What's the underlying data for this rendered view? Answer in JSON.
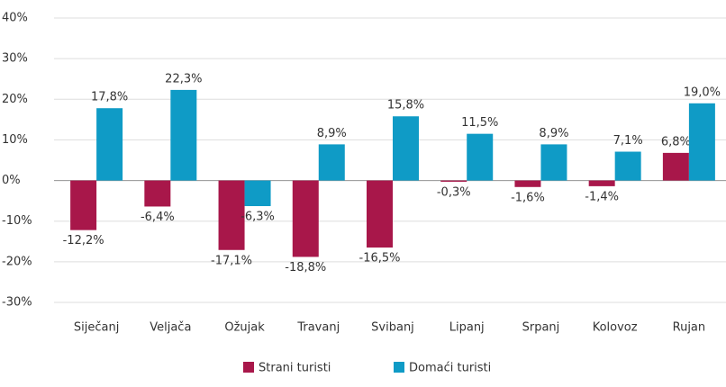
{
  "chart_data": {
    "type": "bar",
    "categories": [
      "Siječanj",
      "Veljača",
      "Ožujak",
      "Travanj",
      "Svibanj",
      "Lipanj",
      "Srpanj",
      "Kolovoz",
      "Rujan"
    ],
    "series": [
      {
        "name": "Strani turisti",
        "color": "#a8174a",
        "values": [
          -12.2,
          -6.4,
          -17.1,
          -18.8,
          -16.5,
          -0.3,
          -1.6,
          -1.4,
          6.8
        ],
        "value_labels": [
          "-12,2%",
          "-6,4%",
          "-17,1%",
          "-18,8%",
          "-16,5%",
          "-0,3%",
          "-1,6%",
          "-1,4%",
          "6,8%"
        ]
      },
      {
        "name": "Domaći turisti",
        "color": "#0f9bc6",
        "values": [
          17.8,
          22.3,
          -6.3,
          8.9,
          15.8,
          11.5,
          8.9,
          7.1,
          19.0
        ],
        "value_labels": [
          "17,8%",
          "22,3%",
          "-6,3%",
          "8,9%",
          "15,8%",
          "11,5%",
          "8,9%",
          "7,1%",
          "19,0%"
        ]
      }
    ],
    "ylim": [
      -30,
      40
    ],
    "yticks": [
      {
        "value": -30,
        "label": "-30%"
      },
      {
        "value": -20,
        "label": "-20%"
      },
      {
        "value": -10,
        "label": "-10%"
      },
      {
        "value": 0,
        "label": "0%"
      },
      {
        "value": 10,
        "label": "10%"
      },
      {
        "value": 20,
        "label": "20%"
      },
      {
        "value": 30,
        "label": "30%"
      },
      {
        "value": 40,
        "label": "40%"
      }
    ],
    "grid": true,
    "legend": "bottom"
  }
}
